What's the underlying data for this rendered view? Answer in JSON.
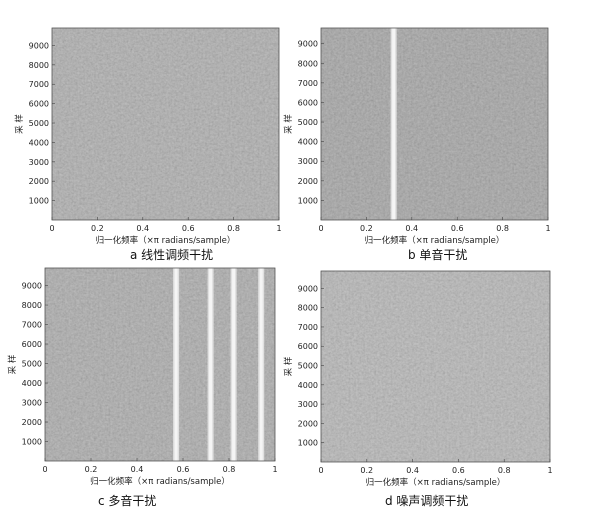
{
  "chart_data": [
    {
      "type": "heatmap",
      "caption": "a 线性调频干扰",
      "xlabel": "归一化频率（×π radians/sample）",
      "ylabel": "采 样",
      "xlim": [
        0,
        1
      ],
      "ylim": [
        0,
        9900
      ],
      "x_ticks": [
        "0",
        "0.2",
        "0.4",
        "0.6",
        "0.8",
        "1"
      ],
      "y_ticks": [
        "1000",
        "2000",
        "3000",
        "4000",
        "5000",
        "6000",
        "7000",
        "8000",
        "9000"
      ],
      "base_gray": "#a9a9a9",
      "lines": []
    },
    {
      "type": "heatmap",
      "caption": "b 单音干扰",
      "xlabel": "归一化频率（×π radians/sample）",
      "ylabel": "采 样",
      "xlim": [
        0,
        1
      ],
      "ylim": [
        0,
        9800
      ],
      "x_ticks": [
        "0",
        "0.2",
        "0.4",
        "0.6",
        "0.8",
        "1"
      ],
      "y_ticks": [
        "1000",
        "2000",
        "3000",
        "4000",
        "5000",
        "6000",
        "7000",
        "8000",
        "9000"
      ],
      "base_gray": "#9d9d9d",
      "lines": [
        0.32
      ]
    },
    {
      "type": "heatmap",
      "caption": "c 多音干扰",
      "xlabel": "归一化频率（×π radians/sample）",
      "ylabel": "采 样",
      "xlim": [
        0,
        1
      ],
      "ylim": [
        0,
        9900
      ],
      "x_ticks": [
        "0",
        "0.2",
        "0.4",
        "0.6",
        "0.8",
        "1"
      ],
      "y_ticks": [
        "1000",
        "2000",
        "3000",
        "4000",
        "5000",
        "6000",
        "7000",
        "8000",
        "9000"
      ],
      "base_gray": "#a6a6a6",
      "lines": [
        0.57,
        0.72,
        0.82,
        0.94
      ]
    },
    {
      "type": "heatmap",
      "caption": "d 噪声调频干扰",
      "xlabel": "归一化频率（×π radians/sample）",
      "ylabel": "采 样",
      "xlim": [
        0,
        1
      ],
      "ylim": [
        0,
        9900
      ],
      "x_ticks": [
        "0",
        "0.2",
        "0.4",
        "0.6",
        "0.8",
        "1"
      ],
      "y_ticks": [
        "1000",
        "2000",
        "3000",
        "4000",
        "5000",
        "6000",
        "7000",
        "8000",
        "9000"
      ],
      "base_gray": "#b3b3b3",
      "lines": []
    }
  ]
}
